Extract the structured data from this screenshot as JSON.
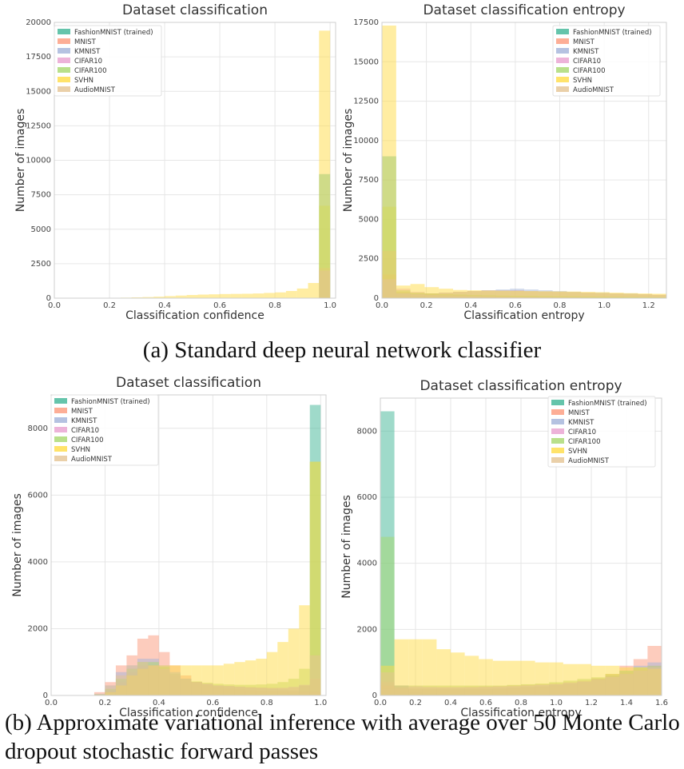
{
  "legend_labels": [
    "FashionMNIST (trained)",
    "MNIST",
    "KMNIST",
    "CIFAR10",
    "CIFAR100",
    "SVHN",
    "AudioMNIST"
  ],
  "series_colors": [
    "#3fb596",
    "#fc9a7c",
    "#a3b3da",
    "#e9a0cf",
    "#a8d86e",
    "#ffdc45",
    "#e5c494"
  ],
  "captions": {
    "a": "(a) Standard deep neural network classifier",
    "b": "(b) Approximate variational inference with average over 50 Monte Carlo dropout stochastic forward passes"
  },
  "chart_data": [
    {
      "type": "bar",
      "title": "Dataset classification",
      "xlabel": "Classification confidence",
      "ylabel": "Number of images",
      "xlim": [
        0.0,
        1.02
      ],
      "ylim": [
        0,
        20000
      ],
      "xticks": [
        "0.0",
        "0.2",
        "0.4",
        "0.6",
        "0.8",
        "1.0"
      ],
      "yticks": [
        "0",
        "2500",
        "5000",
        "7500",
        "10000",
        "12500",
        "15000",
        "17500",
        "20000"
      ],
      "grid": true,
      "legend": "top-left",
      "bin_width": 0.04,
      "bin_starts": [
        0.2,
        0.24,
        0.28,
        0.32,
        0.36,
        0.4,
        0.44,
        0.48,
        0.52,
        0.56,
        0.6,
        0.64,
        0.68,
        0.72,
        0.76,
        0.8,
        0.84,
        0.88,
        0.92,
        0.96
      ],
      "series": [
        {
          "name": "FashionMNIST (trained)",
          "values": [
            0,
            0,
            0,
            0,
            0,
            0,
            0,
            0,
            0,
            0,
            0,
            0,
            0,
            0,
            0,
            0,
            0,
            0,
            0,
            9000
          ]
        },
        {
          "name": "MNIST",
          "values": [
            0,
            0,
            0,
            0,
            0,
            0,
            0,
            0,
            0,
            0,
            0,
            0,
            0,
            0,
            0,
            0,
            0,
            0,
            0,
            0
          ]
        },
        {
          "name": "KMNIST",
          "values": [
            0,
            0,
            0,
            0,
            0,
            0,
            0,
            0,
            0,
            0,
            0,
            0,
            0,
            0,
            0,
            0,
            0,
            0,
            0,
            0
          ]
        },
        {
          "name": "CIFAR10",
          "values": [
            0,
            0,
            0,
            0,
            0,
            0,
            0,
            0,
            0,
            0,
            0,
            0,
            0,
            0,
            0,
            0,
            0,
            0,
            0,
            2200
          ]
        },
        {
          "name": "CIFAR100",
          "values": [
            0,
            0,
            0,
            0,
            0,
            0,
            0,
            0,
            0,
            0,
            0,
            0,
            0,
            0,
            0,
            0,
            0,
            0,
            0,
            6700
          ]
        },
        {
          "name": "SVHN",
          "values": [
            20,
            40,
            60,
            80,
            110,
            150,
            190,
            230,
            260,
            280,
            300,
            310,
            320,
            340,
            380,
            420,
            520,
            700,
            1100,
            19400
          ]
        },
        {
          "name": "AudioMNIST",
          "values": [
            0,
            0,
            0,
            0,
            0,
            0,
            0,
            0,
            0,
            0,
            0,
            0,
            0,
            0,
            0,
            0,
            0,
            0,
            0,
            2000
          ]
        }
      ]
    },
    {
      "type": "bar",
      "title": "Dataset classification entropy",
      "xlabel": "Classification entropy",
      "ylabel": "Number of images",
      "xlim": [
        0.0,
        1.28
      ],
      "ylim": [
        0,
        17500
      ],
      "xticks": [
        "0.0",
        "0.2",
        "0.4",
        "0.6",
        "0.8",
        "1.0",
        "1.2"
      ],
      "yticks": [
        "0",
        "2500",
        "5000",
        "7500",
        "10000",
        "12500",
        "15000",
        "17500"
      ],
      "grid": true,
      "legend": "top-right",
      "bin_width": 0.064,
      "bin_starts": [
        0.0,
        0.064,
        0.128,
        0.192,
        0.256,
        0.32,
        0.384,
        0.448,
        0.512,
        0.576,
        0.64,
        0.704,
        0.768,
        0.832,
        0.896,
        0.96,
        1.024,
        1.088,
        1.152,
        1.216
      ],
      "series": [
        {
          "name": "FashionMNIST (trained)",
          "values": [
            9000,
            300,
            150,
            100,
            80,
            60,
            50,
            40,
            30,
            20,
            20,
            10,
            10,
            10,
            0,
            0,
            0,
            0,
            0,
            0
          ]
        },
        {
          "name": "MNIST",
          "values": [
            1500,
            400,
            300,
            300,
            350,
            400,
            450,
            500,
            500,
            500,
            450,
            420,
            400,
            380,
            350,
            320,
            300,
            280,
            250,
            220
          ]
        },
        {
          "name": "KMNIST",
          "values": [
            1000,
            350,
            300,
            300,
            350,
            400,
            450,
            500,
            550,
            600,
            550,
            500,
            450,
            400,
            350,
            350,
            300,
            300,
            250,
            200
          ]
        },
        {
          "name": "CIFAR10",
          "values": [
            3000,
            600,
            400,
            300,
            250,
            200,
            180,
            160,
            140,
            120,
            100,
            90,
            80,
            70,
            60,
            50,
            40,
            30,
            20,
            10
          ]
        },
        {
          "name": "CIFAR100",
          "values": [
            5800,
            500,
            350,
            300,
            250,
            220,
            200,
            180,
            160,
            150,
            140,
            130,
            120,
            110,
            100,
            90,
            80,
            70,
            60,
            50
          ]
        },
        {
          "name": "SVHN",
          "values": [
            17300,
            800,
            900,
            700,
            600,
            520,
            500,
            480,
            470,
            460,
            450,
            440,
            430,
            420,
            400,
            380,
            350,
            320,
            300,
            280
          ]
        },
        {
          "name": "AudioMNIST",
          "values": [
            1200,
            300,
            250,
            200,
            180,
            160,
            140,
            120,
            100,
            90,
            80,
            70,
            60,
            50,
            40,
            30,
            20,
            10,
            10,
            10
          ]
        }
      ]
    },
    {
      "type": "bar",
      "title": "Dataset classification",
      "xlabel": "Classification confidence",
      "ylabel": "Number of images",
      "xlim": [
        0.0,
        1.02
      ],
      "ylim": [
        0,
        9000
      ],
      "xticks": [
        "0.0",
        "0.2",
        "0.4",
        "0.6",
        "0.8",
        "1.0"
      ],
      "yticks": [
        "0",
        "2000",
        "4000",
        "6000",
        "8000"
      ],
      "grid": true,
      "legend": "top-left",
      "bin_width": 0.04,
      "bin_starts": [
        0.16,
        0.2,
        0.24,
        0.28,
        0.32,
        0.36,
        0.4,
        0.44,
        0.48,
        0.52,
        0.56,
        0.6,
        0.64,
        0.68,
        0.72,
        0.76,
        0.8,
        0.84,
        0.88,
        0.92,
        0.96
      ],
      "series": [
        {
          "name": "FashionMNIST (trained)",
          "values": [
            0,
            0,
            0,
            0,
            0,
            0,
            0,
            0,
            0,
            0,
            0,
            0,
            0,
            0,
            0,
            0,
            0,
            0,
            50,
            300,
            8700
          ]
        },
        {
          "name": "MNIST",
          "values": [
            100,
            400,
            900,
            1200,
            1700,
            1800,
            1300,
            900,
            600,
            400,
            300,
            250,
            200,
            180,
            160,
            140,
            130,
            120,
            110,
            100,
            100
          ]
        },
        {
          "name": "KMNIST",
          "values": [
            50,
            300,
            700,
            900,
            1100,
            1100,
            900,
            700,
            500,
            400,
            350,
            300,
            280,
            260,
            240,
            220,
            200,
            180,
            160,
            140,
            120
          ]
        },
        {
          "name": "CIFAR10",
          "values": [
            20,
            150,
            400,
            700,
            900,
            900,
            800,
            600,
            500,
            400,
            350,
            300,
            280,
            260,
            250,
            240,
            230,
            220,
            240,
            300,
            500
          ]
        },
        {
          "name": "CIFAR100",
          "values": [
            30,
            200,
            500,
            800,
            1000,
            1000,
            850,
            650,
            500,
            420,
            380,
            350,
            330,
            320,
            320,
            330,
            350,
            400,
            500,
            800,
            7000
          ]
        },
        {
          "name": "SVHN",
          "values": [
            10,
            100,
            300,
            600,
            800,
            900,
            900,
            900,
            900,
            900,
            900,
            900,
            950,
            1000,
            1050,
            1100,
            1300,
            1600,
            2000,
            2700,
            7000
          ]
        },
        {
          "name": "AudioMNIST",
          "values": [
            50,
            300,
            600,
            900,
            1000,
            900,
            800,
            650,
            500,
            400,
            350,
            300,
            280,
            260,
            240,
            230,
            220,
            230,
            260,
            320,
            1200
          ]
        }
      ]
    },
    {
      "type": "bar",
      "title": "Dataset classification entropy",
      "xlabel": "Classification entropy",
      "ylabel": "Number of images",
      "xlim": [
        0.0,
        1.6
      ],
      "ylim": [
        0,
        9000
      ],
      "xticks": [
        "0.0",
        "0.2",
        "0.4",
        "0.6",
        "0.8",
        "1.0",
        "1.2",
        "1.4",
        "1.6"
      ],
      "yticks": [
        "0",
        "2000",
        "4000",
        "6000",
        "8000"
      ],
      "grid": true,
      "legend": "top-right",
      "bin_width": 0.08,
      "bin_starts": [
        0.0,
        0.08,
        0.16,
        0.24,
        0.32,
        0.4,
        0.48,
        0.56,
        0.64,
        0.72,
        0.8,
        0.88,
        0.96,
        1.04,
        1.12,
        1.2,
        1.28,
        1.36,
        1.44,
        1.52
      ],
      "series": [
        {
          "name": "FashionMNIST (trained)",
          "values": [
            8600,
            300,
            100,
            60,
            40,
            30,
            20,
            20,
            10,
            10,
            10,
            10,
            0,
            0,
            0,
            0,
            0,
            0,
            0,
            0
          ]
        },
        {
          "name": "MNIST",
          "values": [
            300,
            200,
            200,
            200,
            200,
            200,
            200,
            200,
            200,
            220,
            240,
            260,
            300,
            350,
            400,
            500,
            650,
            900,
            1100,
            1500
          ]
        },
        {
          "name": "KMNIST",
          "values": [
            200,
            200,
            200,
            200,
            200,
            200,
            200,
            200,
            220,
            240,
            260,
            280,
            320,
            360,
            420,
            500,
            600,
            750,
            900,
            1000
          ]
        },
        {
          "name": "CIFAR10",
          "values": [
            400,
            250,
            250,
            250,
            250,
            250,
            260,
            270,
            280,
            300,
            320,
            340,
            360,
            400,
            450,
            520,
            600,
            700,
            800,
            900
          ]
        },
        {
          "name": "CIFAR100",
          "values": [
            4800,
            300,
            300,
            300,
            300,
            300,
            300,
            300,
            300,
            320,
            340,
            360,
            400,
            450,
            500,
            550,
            650,
            750,
            850,
            900
          ]
        },
        {
          "name": "SVHN",
          "values": [
            900,
            1700,
            1700,
            1700,
            1400,
            1300,
            1200,
            1100,
            1050,
            1050,
            1050,
            1000,
            1000,
            950,
            950,
            900,
            900,
            850,
            850,
            800
          ]
        },
        {
          "name": "AudioMNIST",
          "values": [
            700,
            300,
            280,
            260,
            250,
            250,
            250,
            260,
            270,
            280,
            300,
            320,
            340,
            380,
            420,
            480,
            560,
            650,
            750,
            850
          ]
        }
      ]
    }
  ]
}
